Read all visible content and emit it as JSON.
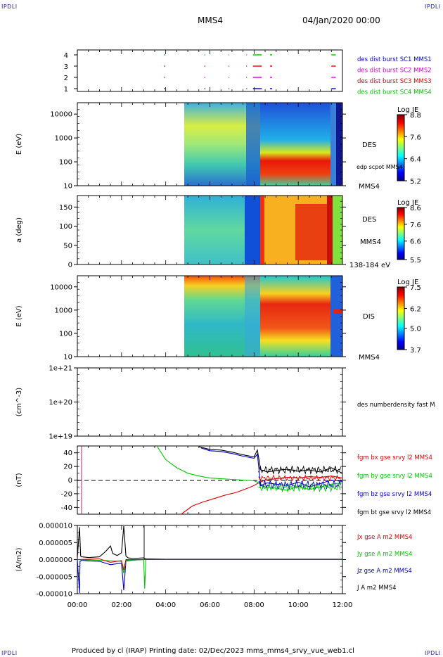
{
  "corner_label": "IPDLI",
  "header": {
    "spacecraft": "MMS4",
    "date": "04/Jan/2020 00:00"
  },
  "footer": "Produced by cl (IRAP)   Printing date: 02/Dec/2023   mms_mms4_srvy_vue_web1.cl",
  "colors": {
    "red": "#e00000",
    "green": "#00c800",
    "blue": "#0000cc",
    "magenta": "#d000d0",
    "black": "#000000"
  },
  "chart_data": [
    {
      "id": "availability",
      "type": "scatter",
      "yticks": [
        "1",
        "2",
        "3",
        "4"
      ],
      "legend": [
        {
          "label": "des dist burst SC1 MMS1",
          "color": "#0000cc"
        },
        {
          "label": "des dist burst SC2 MMS2",
          "color": "#d000d0"
        },
        {
          "label": "des dist burst SC3 MMS3",
          "color": "#e00000"
        },
        {
          "label": "des dist burst SC4 MMS4",
          "color": "#00c800"
        }
      ],
      "segments_hours": [
        [
          3.93,
          3.98
        ],
        [
          5.75,
          5.79
        ],
        [
          6.85,
          6.88
        ],
        [
          7.65,
          7.68
        ],
        [
          7.95,
          8.35
        ],
        [
          8.72,
          8.82
        ],
        [
          11.5,
          11.7
        ]
      ],
      "xlim": [
        0,
        12
      ]
    },
    {
      "id": "des-energy",
      "type": "heatmap",
      "ylabel": "E (eV)",
      "yticks": [
        "10",
        "100",
        "1000",
        "10000"
      ],
      "ylim": [
        10,
        30000
      ],
      "log": true,
      "colorbar": {
        "title": "Log JE",
        "ticks": [
          "8.8",
          "7.6",
          "6.4",
          "5.2"
        ],
        "range": [
          5.2,
          8.8
        ]
      },
      "labels": [
        "DES",
        "edp scpot MMS4",
        "MMS4"
      ],
      "data_start_hours": 4.85
    },
    {
      "id": "des-pitch",
      "type": "heatmap",
      "ylabel": "a (deg)",
      "yticks": [
        "0",
        "50",
        "100",
        "150"
      ],
      "ylim": [
        0,
        180
      ],
      "colorbar": {
        "title": "Log JE",
        "ticks": [
          "8.6",
          "7.6",
          "6.6",
          "5.5"
        ],
        "range": [
          5.5,
          8.6
        ]
      },
      "labels": [
        "DES",
        "MMS4",
        "138-184 eV"
      ],
      "data_start_hours": 4.85
    },
    {
      "id": "dis-energy",
      "type": "heatmap",
      "ylabel": "E (eV)",
      "yticks": [
        "10",
        "100",
        "1000",
        "10000"
      ],
      "ylim": [
        10,
        30000
      ],
      "log": true,
      "colorbar": {
        "title": "Log JE",
        "ticks": [
          "7.5",
          "6.2",
          "5.0",
          "3.7"
        ],
        "range": [
          3.7,
          7.5
        ]
      },
      "labels": [
        "DIS",
        "MMS4"
      ],
      "data_start_hours": 4.85
    },
    {
      "id": "density",
      "type": "line",
      "ylabel": "(cm^-3)",
      "yticks": [
        "1e+19",
        "1e+20",
        "1e+21"
      ],
      "ylim": [
        1e+19,
        1e+21
      ],
      "log": true,
      "legend": [
        {
          "label": "des numberdensity fast M",
          "color": "#000000"
        }
      ],
      "series": []
    },
    {
      "id": "magnetic-field",
      "type": "line",
      "ylabel": "(nT)",
      "yticks": [
        "-40",
        "-20",
        "0",
        "20",
        "40"
      ],
      "ylim": [
        -50,
        50
      ],
      "legend": [
        {
          "label": "fgm bx gse srvy l2 MMS4",
          "color": "#e00000"
        },
        {
          "label": "fgm by gse srvy l2 MMS4",
          "color": "#00c800"
        },
        {
          "label": "fgm bz gse srvy l2 MMS4",
          "color": "#0000cc"
        },
        {
          "label": "fgm bt gse srvy l2 MMS4",
          "color": "#000000"
        }
      ],
      "series": [
        {
          "color": "#e00000",
          "x": [
            4.7,
            5.2,
            5.7,
            6.2,
            6.7,
            7.2,
            7.7,
            8.0,
            8.15,
            8.5,
            9.0,
            9.5,
            10.0,
            10.5,
            11.0,
            11.5,
            12.0
          ],
          "y": [
            -50,
            -38,
            -32,
            -27,
            -22,
            -18,
            -12,
            -8,
            -5,
            0,
            2,
            4,
            3,
            5,
            4,
            6,
            3
          ]
        },
        {
          "color": "#00c800",
          "x": [
            3.6,
            4.0,
            4.5,
            5.0,
            5.5,
            6.0,
            6.5,
            7.0,
            7.5,
            8.0,
            8.15,
            8.5,
            9.0,
            9.5,
            10.0,
            10.5,
            11.0,
            11.5,
            12.0
          ],
          "y": [
            50,
            30,
            18,
            10,
            6,
            3,
            2,
            1,
            0,
            -1,
            -3,
            -10,
            -12,
            -15,
            -9,
            -14,
            -10,
            -6,
            -4
          ]
        },
        {
          "color": "#0000cc",
          "x": [
            5.6,
            6.0,
            6.5,
            7.0,
            7.5,
            8.0,
            8.15,
            8.3,
            8.6,
            9.0,
            9.5,
            10.0,
            10.5,
            11.0,
            11.5,
            12.0
          ],
          "y": [
            47,
            43,
            42,
            39,
            35,
            32,
            38,
            -8,
            -4,
            -6,
            -8,
            -3,
            -10,
            -5,
            0,
            -2
          ]
        },
        {
          "color": "#000000",
          "x": [
            5.5,
            6.0,
            6.5,
            7.0,
            7.5,
            8.0,
            8.15,
            8.3,
            8.6,
            9.0,
            9.5,
            10.0,
            10.5,
            11.0,
            11.5,
            12.0
          ],
          "y": [
            49,
            45,
            44,
            41,
            37,
            34,
            44,
            15,
            12,
            14,
            16,
            13,
            15,
            12,
            18,
            10
          ]
        }
      ]
    },
    {
      "id": "current-density",
      "type": "line",
      "ylabel": "(A/m2)",
      "yticks": [
        "-0.000010",
        "-0.000005",
        "0.000000",
        "0.000005",
        "0.000010"
      ],
      "ylim": [
        -1e-05,
        1e-05
      ],
      "legend": [
        {
          "label": "Jx gse A m2 MMS4",
          "color": "#e00000"
        },
        {
          "label": "Jy gse A m2 MMS4",
          "color": "#00c800"
        },
        {
          "label": "Jz gse A m2 MMS4",
          "color": "#0000cc"
        },
        {
          "label": "J A m2 MMS4",
          "color": "#000000"
        }
      ],
      "series": [
        {
          "color": "#000000",
          "x": [
            0.0,
            0.1,
            0.15,
            0.2,
            0.5,
            1.0,
            1.3,
            1.5,
            1.6,
            1.8,
            2.0,
            2.1,
            2.2,
            2.3,
            2.5,
            3.0,
            3.1,
            4.0,
            12.0
          ],
          "y": [
            5e-07,
            9.5e-06,
            1e-06,
            8e-07,
            6e-07,
            8e-07,
            2.5e-06,
            4e-06,
            1.8e-06,
            1.2e-06,
            2e-06,
            9.8e-06,
            1e-06,
            5e-07,
            3e-07,
            5e-07,
            2e-07,
            1e-07,
            1e-07
          ]
        },
        {
          "color": "#0000cc",
          "x": [
            0.0,
            0.1,
            0.12,
            0.2,
            0.5,
            1.0,
            1.5,
            2.0,
            2.1,
            2.2,
            2.5,
            3.0,
            12.0
          ],
          "y": [
            0,
            -9.8e-06,
            -5e-07,
            -2e-07,
            -4e-07,
            -5e-07,
            -1.5e-06,
            -1e-06,
            -9e-06,
            -4e-07,
            -2e-07,
            0,
            0
          ]
        },
        {
          "color": "#00c800",
          "x": [
            0.0,
            1.0,
            2.0,
            2.1,
            2.2,
            3.0,
            3.05,
            3.1,
            12.0
          ],
          "y": [
            0,
            -2e-07,
            -5e-07,
            -4e-06,
            -2e-07,
            0,
            -8.5e-06,
            0,
            0
          ]
        },
        {
          "color": "#e00000",
          "x": [
            0.0,
            1.0,
            1.5,
            2.0,
            2.1,
            2.2,
            12.0
          ],
          "y": [
            0,
            2e-07,
            -8e-07,
            -3e-07,
            -3e-06,
            0,
            0
          ]
        }
      ]
    }
  ],
  "time_axis": {
    "ticks": [
      "00:00",
      "02:00",
      "04:00",
      "06:00",
      "08:00",
      "10:00",
      "12:00"
    ],
    "range_hours": [
      0,
      12
    ]
  }
}
